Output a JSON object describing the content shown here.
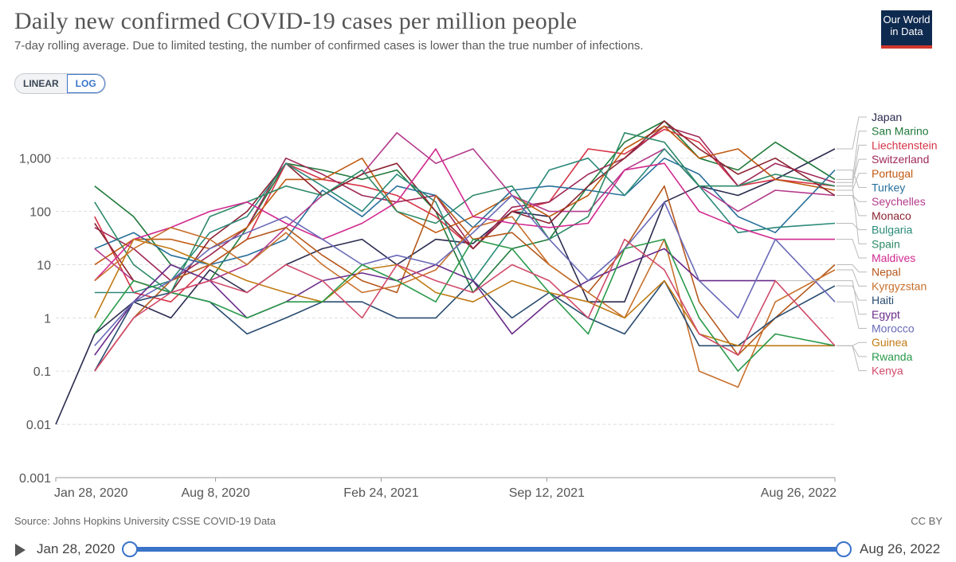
{
  "header": {
    "title": "Daily new confirmed COVID-19 cases per million people",
    "subtitle": "7-day rolling average. Due to limited testing, the number of confirmed cases is lower than the true number of infections.",
    "logo_line1": "Our World",
    "logo_line2": "in Data"
  },
  "scale_toggle": {
    "linear_label": "LINEAR",
    "log_label": "LOG",
    "active": "LOG"
  },
  "footer": {
    "source": "Source: Johns Hopkins University CSSE COVID-19 Data",
    "license": "CC BY"
  },
  "timeline": {
    "start_label": "Jan 28, 2020",
    "end_label": "Aug 26, 2022"
  },
  "chart_data": {
    "type": "line",
    "title": "Daily new confirmed COVID-19 cases per million people",
    "y_scale": "log",
    "ylim": [
      0.001,
      5000
    ],
    "y_ticks": [
      0.001,
      0.01,
      0.1,
      1,
      10,
      100,
      1000
    ],
    "y_tick_labels": [
      "0.001",
      "0.01",
      "0.1",
      "1",
      "10",
      "100",
      "1,000"
    ],
    "x_range": [
      "2020-01-28",
      "2022-08-26"
    ],
    "x_ticks": [
      {
        "date": "2020-01-28",
        "label": "Jan 28, 2020"
      },
      {
        "date": "2020-08-08",
        "label": "Aug 8, 2020"
      },
      {
        "date": "2021-02-24",
        "label": "Feb 24, 2021"
      },
      {
        "date": "2021-09-12",
        "label": "Sep 12, 2021"
      },
      {
        "date": "2022-08-26",
        "label": "Aug 26, 2022"
      }
    ],
    "x_anchor_dates": [
      "2020-01-28",
      "2020-03-15",
      "2020-05-01",
      "2020-06-15",
      "2020-08-01",
      "2020-09-15",
      "2020-11-01",
      "2020-12-15",
      "2021-02-01",
      "2021-03-15",
      "2021-05-01",
      "2021-06-15",
      "2021-08-01",
      "2021-09-15",
      "2021-11-01",
      "2021-12-15",
      "2022-02-01",
      "2022-03-15",
      "2022-05-01",
      "2022-06-15",
      "2022-08-26"
    ],
    "series": [
      {
        "name": "Japan",
        "color": "#2b2b4f",
        "values": [
          0.01,
          0.5,
          2,
          1,
          8,
          3,
          10,
          20,
          30,
          10,
          30,
          25,
          100,
          80,
          2,
          2,
          150,
          300,
          200,
          400,
          1500
        ]
      },
      {
        "name": "San Marino",
        "color": "#1f7a3a",
        "values": [
          null,
          300,
          80,
          10,
          5,
          50,
          800,
          600,
          400,
          600,
          100,
          3,
          20,
          30,
          300,
          2000,
          5000,
          1000,
          600,
          2000,
          400
        ]
      },
      {
        "name": "Liechtenstein",
        "color": "#d63447",
        "values": [
          null,
          80,
          3,
          2,
          10,
          30,
          800,
          400,
          300,
          200,
          80,
          20,
          100,
          150,
          1500,
          1200,
          3500,
          2000,
          300,
          400,
          300
        ]
      },
      {
        "name": "Switzerland",
        "color": "#a02a58",
        "values": [
          null,
          50,
          20,
          5,
          15,
          50,
          1000,
          500,
          200,
          150,
          200,
          20,
          120,
          150,
          500,
          1000,
          4000,
          2500,
          300,
          800,
          350
        ]
      },
      {
        "name": "Portugal",
        "color": "#c15a11",
        "values": [
          null,
          10,
          30,
          30,
          20,
          50,
          400,
          400,
          1000,
          100,
          40,
          80,
          200,
          80,
          200,
          1500,
          4000,
          1000,
          1500,
          400,
          250
        ]
      },
      {
        "name": "Turkey",
        "color": "#28709a",
        "values": [
          null,
          20,
          40,
          15,
          10,
          15,
          30,
          250,
          80,
          300,
          200,
          50,
          250,
          300,
          250,
          200,
          1000,
          500,
          80,
          40,
          600
        ]
      },
      {
        "name": "Seychelles",
        "color": "#b43b8c",
        "values": [
          null,
          20,
          5,
          3,
          5,
          10,
          50,
          200,
          500,
          3000,
          800,
          1500,
          200,
          100,
          100,
          600,
          1500,
          300,
          100,
          250,
          200
        ]
      },
      {
        "name": "Monaco",
        "color": "#8b2332",
        "values": [
          null,
          60,
          5,
          3,
          30,
          100,
          800,
          200,
          500,
          800,
          100,
          20,
          100,
          60,
          300,
          1000,
          5000,
          1500,
          500,
          1000,
          200
        ]
      },
      {
        "name": "Bulgaria",
        "color": "#2a8a7a",
        "values": [
          null,
          3,
          3,
          5,
          40,
          80,
          800,
          300,
          100,
          500,
          150,
          5,
          50,
          600,
          1000,
          200,
          1500,
          300,
          40,
          50,
          60
        ]
      },
      {
        "name": "Spain",
        "color": "#2d8a67",
        "values": [
          null,
          150,
          10,
          3,
          80,
          150,
          300,
          200,
          600,
          100,
          60,
          200,
          300,
          30,
          80,
          3000,
          2000,
          300,
          300,
          500,
          300
        ]
      },
      {
        "name": "Maldives",
        "color": "#d12a8f",
        "values": [
          null,
          5,
          30,
          50,
          100,
          150,
          60,
          30,
          60,
          150,
          1500,
          80,
          60,
          50,
          60,
          600,
          800,
          100,
          50,
          30,
          30
        ]
      },
      {
        "name": "Nepal",
        "color": "#b5581c",
        "values": [
          null,
          0.1,
          1,
          5,
          10,
          30,
          50,
          15,
          5,
          3,
          200,
          30,
          40,
          10,
          3,
          20,
          300,
          2,
          0.2,
          1,
          10
        ]
      },
      {
        "name": "Kyrgyzstan",
        "color": "#c8702c",
        "values": [
          null,
          5,
          20,
          50,
          30,
          10,
          40,
          10,
          3,
          4,
          8,
          50,
          80,
          10,
          3,
          1,
          30,
          0.1,
          0.05,
          2,
          8
        ]
      },
      {
        "name": "Haiti",
        "color": "#2a4c70",
        "values": [
          null,
          0.1,
          2,
          3,
          2,
          0.5,
          1,
          2,
          2,
          1,
          1,
          5,
          1,
          3,
          1,
          0.5,
          5,
          0.3,
          0.3,
          1,
          4
        ]
      },
      {
        "name": "Egypt",
        "color": "#6a2c8a",
        "values": [
          null,
          0.2,
          2,
          10,
          5,
          1,
          2,
          5,
          7,
          5,
          10,
          5,
          0.5,
          2,
          5,
          10,
          20,
          5,
          5,
          5,
          null
        ]
      },
      {
        "name": "Morocco",
        "color": "#6a6ab8",
        "values": [
          null,
          0.3,
          2,
          5,
          20,
          40,
          80,
          30,
          10,
          15,
          10,
          40,
          200,
          30,
          5,
          20,
          150,
          5,
          1,
          30,
          2
        ]
      },
      {
        "name": "Guinea",
        "color": "#c07a14",
        "values": [
          null,
          1,
          30,
          20,
          10,
          5,
          3,
          2,
          8,
          10,
          3,
          2,
          5,
          3,
          2,
          1,
          5,
          0.5,
          0.3,
          0.3,
          0.3
        ]
      },
      {
        "name": "Rwanda",
        "color": "#2a9a4a",
        "values": [
          null,
          0.5,
          5,
          3,
          2,
          1,
          2,
          2,
          10,
          5,
          2,
          30,
          20,
          3,
          0.5,
          20,
          30,
          1,
          0.1,
          0.5,
          0.3
        ]
      },
      {
        "name": "Kenya",
        "color": "#d14b6b",
        "values": [
          null,
          0.1,
          1,
          3,
          5,
          3,
          10,
          5,
          1,
          10,
          5,
          3,
          10,
          5,
          1,
          30,
          8,
          0.5,
          0.2,
          5,
          0.3
        ]
      }
    ],
    "legend_position": "right"
  }
}
